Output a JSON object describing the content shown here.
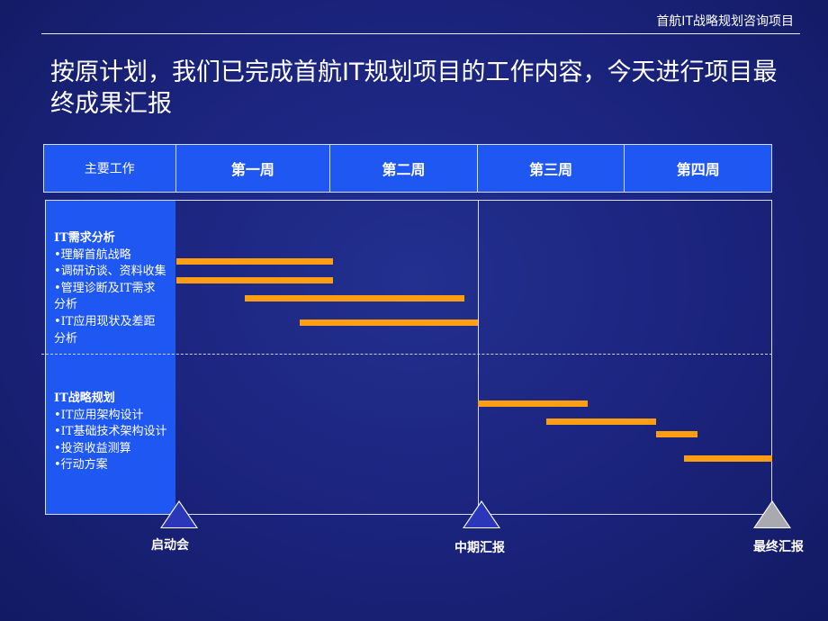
{
  "header": {
    "top_title": "首航IT战略规划咨询项目",
    "headline": "按原计划，我们已完成首航IT规划项目的工作内容，今天进行项目最终成果汇报"
  },
  "table": {
    "first_col_label": "主要工作",
    "weeks": [
      "第一周",
      "第二周",
      "第三周",
      "第四周"
    ]
  },
  "groups": [
    {
      "title": "IT需求分析",
      "items": [
        "•理解首航战略",
        "•调研访谈、资料收集",
        "•管理诊断及IT需求",
        "分析",
        "•IT应用现状及差距",
        "分析"
      ]
    },
    {
      "title": "IT战略规划",
      "items": [
        "•IT应用架构设计",
        "•IT基础技术架构设计",
        "•投资收益测算",
        "•行动方案"
      ]
    }
  ],
  "milestones": [
    "启动会",
    "中期汇报",
    "最终汇报"
  ],
  "colors": {
    "bar": "#ff9e12",
    "header_fill": "#1f57f2",
    "milestone": "#2b36b8",
    "milestone_final": "#a9a9b0"
  }
}
